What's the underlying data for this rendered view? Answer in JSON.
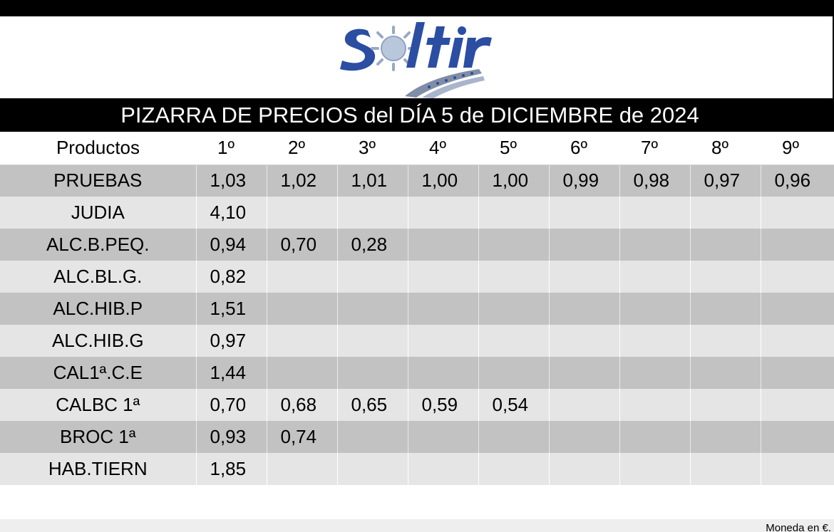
{
  "logo": {
    "text": "Soltir",
    "icon": "sun-road-logo"
  },
  "header": {
    "title": "PIZARRA DE PRECIOS del DÍA 5 de DICIEMBRE de 2024"
  },
  "table": {
    "columns": [
      "Productos",
      "1º",
      "2º",
      "3º",
      "4º",
      "5º",
      "6º",
      "7º",
      "8º",
      "9º"
    ],
    "rows": [
      {
        "product": "PRUEBAS",
        "prices": [
          "1,03",
          "1,02",
          "1,01",
          "1,00",
          "1,00",
          "0,99",
          "0,98",
          "0,97",
          "0,96"
        ]
      },
      {
        "product": "JUDIA",
        "prices": [
          "4,10",
          "",
          "",
          "",
          "",
          "",
          "",
          "",
          ""
        ]
      },
      {
        "product": "ALC.B.PEQ.",
        "prices": [
          "0,94",
          "0,70",
          "0,28",
          "",
          "",
          "",
          "",
          "",
          ""
        ]
      },
      {
        "product": "ALC.BL.G.",
        "prices": [
          "0,82",
          "",
          "",
          "",
          "",
          "",
          "",
          "",
          ""
        ]
      },
      {
        "product": "ALC.HIB.P",
        "prices": [
          "1,51",
          "",
          "",
          "",
          "",
          "",
          "",
          "",
          ""
        ]
      },
      {
        "product": "ALC.HIB.G",
        "prices": [
          "0,97",
          "",
          "",
          "",
          "",
          "",
          "",
          "",
          ""
        ]
      },
      {
        "product": "CAL1ª.C.E",
        "prices": [
          "1,44",
          "",
          "",
          "",
          "",
          "",
          "",
          "",
          ""
        ]
      },
      {
        "product": "CALBC 1ª",
        "prices": [
          "0,70",
          "0,68",
          "0,65",
          "0,59",
          "0,54",
          "",
          "",
          "",
          ""
        ]
      },
      {
        "product": "BROC 1ª",
        "prices": [
          "0,93",
          "0,74",
          "",
          "",
          "",
          "",
          "",
          "",
          ""
        ]
      },
      {
        "product": "HAB.TIERN",
        "prices": [
          "1,85",
          "",
          "",
          "",
          "",
          "",
          "",
          "",
          ""
        ]
      }
    ]
  },
  "footer": {
    "currency_note": "Moneda en €."
  },
  "colors": {
    "title_bg": "#000000",
    "row_dark": "#c2c2c2",
    "row_light": "#e5e5e5",
    "logo_blue": "#2b4ea3"
  }
}
